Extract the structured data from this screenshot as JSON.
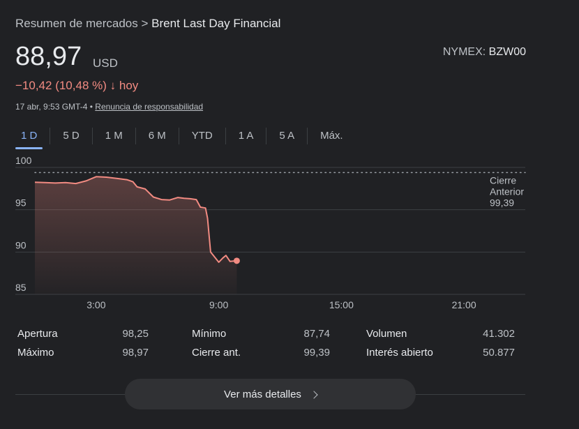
{
  "breadcrumb": {
    "parent": "Resumen de mercados",
    "separator": ">",
    "current": "Brent Last Day Financial"
  },
  "quote": {
    "price": "88,97",
    "currency": "USD",
    "exchange_label": "NYMEX:",
    "ticker": "BZW00",
    "change": "−10,42 (10,48 %)",
    "change_arrow": "↓",
    "change_period": "hoy",
    "timestamp": "17 abr, 9:53 GMT-4 •",
    "disclaimer": "Renuncia de responsabilidad"
  },
  "tabs": [
    "1 D",
    "5 D",
    "1 M",
    "6 M",
    "YTD",
    "1 A",
    "5 A",
    "Máx."
  ],
  "active_tab": "1 D",
  "colors": {
    "line": "#f28b82",
    "accent": "#8ab4f8",
    "background": "#202124"
  },
  "chart_data": {
    "type": "area",
    "x_unit": "hour",
    "xlim": [
      0,
      24
    ],
    "ylim": [
      85,
      100
    ],
    "y_ticks": [
      "100",
      "95",
      "90",
      "85"
    ],
    "x_ticks": [
      "3:00",
      "9:00",
      "15:00",
      "21:00"
    ],
    "grid": true,
    "reference_line": {
      "value": 99.39,
      "label_lines": [
        "Cierre",
        "Anterior",
        "99,39"
      ]
    },
    "series": [
      {
        "x": [
          0,
          0.5,
          1,
          1.5,
          2,
          2.5,
          3,
          3.5,
          4,
          4.5,
          4.8,
          5,
          5.4,
          5.8,
          6.2,
          6.6,
          7,
          7.3,
          7.6,
          7.9,
          8.1,
          8.35,
          8.45,
          8.6,
          8.8,
          9.0,
          9.2,
          9.35,
          9.55,
          9.88
        ],
        "y": [
          98.25,
          98.2,
          98.15,
          98.2,
          98.1,
          98.4,
          98.9,
          98.85,
          98.7,
          98.55,
          98.3,
          97.7,
          97.45,
          96.5,
          96.2,
          96.15,
          96.45,
          96.35,
          96.3,
          96.2,
          95.3,
          95.2,
          94.0,
          90.0,
          89.4,
          88.8,
          89.3,
          89.6,
          88.9,
          88.97
        ]
      }
    ]
  },
  "stats": {
    "col1": [
      {
        "label": "Apertura",
        "value": "98,25"
      },
      {
        "label": "Máximo",
        "value": "98,97"
      }
    ],
    "col2": [
      {
        "label": "Mínimo",
        "value": "87,74"
      },
      {
        "label": "Cierre ant.",
        "value": "99,39"
      }
    ],
    "col3": [
      {
        "label": "Volumen",
        "value": "41.302"
      },
      {
        "label": "Interés abierto",
        "value": "50.877"
      }
    ]
  },
  "more_details": "Ver más detalles"
}
